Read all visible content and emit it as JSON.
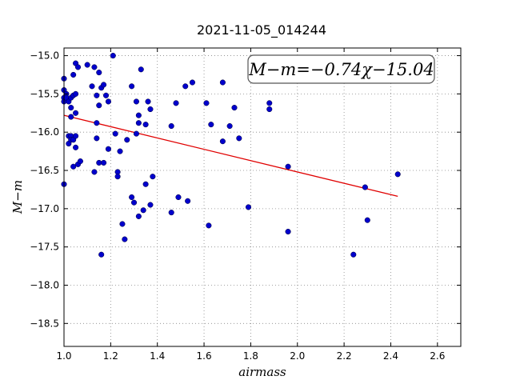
{
  "chart_data": {
    "type": "scatter",
    "title": "2021-11-05_014244",
    "xlabel": "airmass",
    "ylabel": "M−m",
    "xlim": [
      1.0,
      2.7
    ],
    "ylim": [
      -18.8,
      -14.9
    ],
    "y_inverted": false,
    "grid": true,
    "grid_style": "dotted",
    "x_ticks": [
      1.0,
      1.2,
      1.4,
      1.6,
      1.8,
      2.0,
      2.2,
      2.4,
      2.6
    ],
    "x_tick_labels": [
      "1.0",
      "1.2",
      "1.4",
      "1.6",
      "1.8",
      "2.0",
      "2.2",
      "2.4",
      "2.6"
    ],
    "y_ticks": [
      -15.0,
      -15.5,
      -16.0,
      -16.5,
      -17.0,
      -17.5,
      -18.0,
      -18.5
    ],
    "y_tick_labels": [
      "−15.0",
      "−15.5",
      "−16.0",
      "−16.5",
      "−17.0",
      "−17.5",
      "−18.0",
      "−18.5"
    ],
    "annotation": "M−m=−0.74χ−15.04",
    "colors": {
      "points": "#0000cc",
      "fit_line": "#e00000",
      "grid": "#888888"
    },
    "fit": {
      "slope": -0.74,
      "intercept": -15.04,
      "x_range": [
        1.0,
        2.43
      ]
    },
    "points": [
      [
        1.0,
        -15.3
      ],
      [
        1.0,
        -15.45
      ],
      [
        1.0,
        -15.55
      ],
      [
        1.0,
        -15.6
      ],
      [
        1.0,
        -16.68
      ],
      [
        1.01,
        -15.5
      ],
      [
        1.01,
        -15.55
      ],
      [
        1.02,
        -15.6
      ],
      [
        1.02,
        -16.15
      ],
      [
        1.02,
        -16.05
      ],
      [
        1.03,
        -15.55
      ],
      [
        1.03,
        -15.68
      ],
      [
        1.03,
        -15.8
      ],
      [
        1.03,
        -16.05
      ],
      [
        1.03,
        -16.1
      ],
      [
        1.04,
        -15.52
      ],
      [
        1.04,
        -15.25
      ],
      [
        1.04,
        -16.1
      ],
      [
        1.04,
        -16.45
      ],
      [
        1.05,
        -15.1
      ],
      [
        1.05,
        -15.5
      ],
      [
        1.05,
        -15.75
      ],
      [
        1.05,
        -16.05
      ],
      [
        1.05,
        -16.2
      ],
      [
        1.06,
        -15.15
      ],
      [
        1.06,
        -16.42
      ],
      [
        1.07,
        -16.38
      ],
      [
        1.1,
        -15.12
      ],
      [
        1.12,
        -15.4
      ],
      [
        1.13,
        -15.15
      ],
      [
        1.13,
        -16.52
      ],
      [
        1.14,
        -15.88
      ],
      [
        1.14,
        -15.52
      ],
      [
        1.14,
        -16.08
      ],
      [
        1.15,
        -15.22
      ],
      [
        1.15,
        -15.65
      ],
      [
        1.15,
        -16.4
      ],
      [
        1.16,
        -17.6
      ],
      [
        1.16,
        -15.42
      ],
      [
        1.17,
        -15.38
      ],
      [
        1.17,
        -16.4
      ],
      [
        1.18,
        -15.52
      ],
      [
        1.19,
        -15.6
      ],
      [
        1.19,
        -16.22
      ],
      [
        1.21,
        -15.0
      ],
      [
        1.22,
        -16.02
      ],
      [
        1.23,
        -16.52
      ],
      [
        1.23,
        -16.58
      ],
      [
        1.24,
        -16.25
      ],
      [
        1.25,
        -17.2
      ],
      [
        1.26,
        -17.4
      ],
      [
        1.27,
        -16.1
      ],
      [
        1.29,
        -15.4
      ],
      [
        1.29,
        -16.85
      ],
      [
        1.3,
        -16.92
      ],
      [
        1.31,
        -15.6
      ],
      [
        1.31,
        -16.02
      ],
      [
        1.32,
        -15.78
      ],
      [
        1.32,
        -15.88
      ],
      [
        1.32,
        -17.1
      ],
      [
        1.33,
        -15.18
      ],
      [
        1.34,
        -17.02
      ],
      [
        1.35,
        -15.9
      ],
      [
        1.35,
        -16.68
      ],
      [
        1.36,
        -15.6
      ],
      [
        1.37,
        -15.7
      ],
      [
        1.37,
        -16.95
      ],
      [
        1.38,
        -16.58
      ],
      [
        1.46,
        -15.92
      ],
      [
        1.46,
        -17.05
      ],
      [
        1.48,
        -15.62
      ],
      [
        1.49,
        -16.85
      ],
      [
        1.52,
        -15.4
      ],
      [
        1.53,
        -16.9
      ],
      [
        1.55,
        -15.35
      ],
      [
        1.61,
        -15.62
      ],
      [
        1.62,
        -17.22
      ],
      [
        1.63,
        -15.9
      ],
      [
        1.68,
        -15.35
      ],
      [
        1.68,
        -16.12
      ],
      [
        1.71,
        -15.92
      ],
      [
        1.73,
        -15.68
      ],
      [
        1.75,
        -16.08
      ],
      [
        1.79,
        -16.98
      ],
      [
        1.88,
        -15.62
      ],
      [
        1.88,
        -15.7
      ],
      [
        1.96,
        -16.45
      ],
      [
        1.96,
        -17.3
      ],
      [
        2.24,
        -17.6
      ],
      [
        2.29,
        -16.72
      ],
      [
        2.3,
        -17.15
      ],
      [
        2.43,
        -16.55
      ]
    ]
  }
}
